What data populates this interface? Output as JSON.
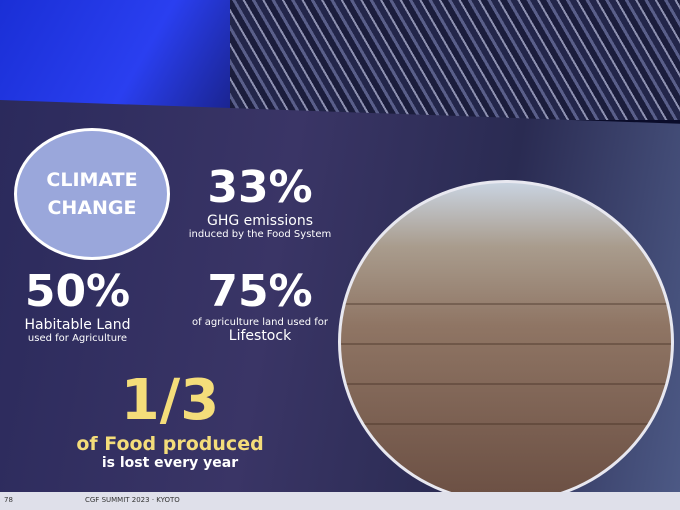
{
  "slide": {
    "badge": {
      "line1": "CLIMATE",
      "line2": "CHANGE"
    },
    "stats": [
      {
        "value": "33%",
        "line1": "GHG emissions",
        "line2": "induced by the Food System"
      },
      {
        "value": "50%",
        "line1": "Habitable Land",
        "line2": "used for Agriculture"
      },
      {
        "value": "75%",
        "line1": "of agriculture land used for",
        "line2": "Lifestock"
      },
      {
        "value": "1/3",
        "line1": "of Food produced",
        "line2": "is lost every year"
      }
    ],
    "footer": {
      "page": "78",
      "event": "CGF SUMMIT 2023 · KYOTO"
    }
  }
}
